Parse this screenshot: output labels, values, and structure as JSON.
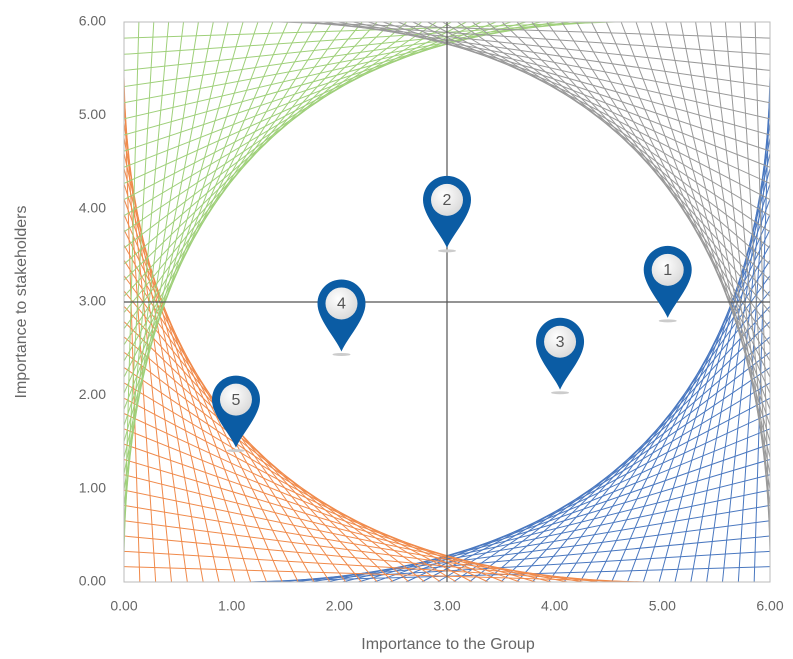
{
  "chart_data": {
    "type": "pin-scatter",
    "x_label": "Importance to the Group",
    "y_label": "Importance to stakeholders",
    "xlim": [
      0,
      6
    ],
    "ylim": [
      0,
      6
    ],
    "xticks": [
      {
        "value": 0,
        "label": "0.00"
      },
      {
        "value": 1,
        "label": "1.00"
      },
      {
        "value": 2,
        "label": "2.00"
      },
      {
        "value": 3,
        "label": "3.00"
      },
      {
        "value": 4,
        "label": "4.00"
      },
      {
        "value": 5,
        "label": "5.00"
      },
      {
        "value": 6,
        "label": "6.00"
      }
    ],
    "yticks": [
      {
        "value": 0,
        "label": "0.00"
      },
      {
        "value": 1,
        "label": "1.00"
      },
      {
        "value": 2,
        "label": "2.00"
      },
      {
        "value": 3,
        "label": "3.00"
      },
      {
        "value": 4,
        "label": "4.00"
      },
      {
        "value": 5,
        "label": "5.00"
      },
      {
        "value": 6,
        "label": "6.00"
      }
    ],
    "color": "#0b5ca4",
    "labels": [
      "1",
      "2",
      "3",
      "4",
      "5"
    ],
    "x": [
      5.05,
      3.0,
      4.05,
      2.02,
      1.04
    ],
    "values": [
      2.83,
      3.58,
      2.06,
      2.47,
      1.44
    ]
  }
}
